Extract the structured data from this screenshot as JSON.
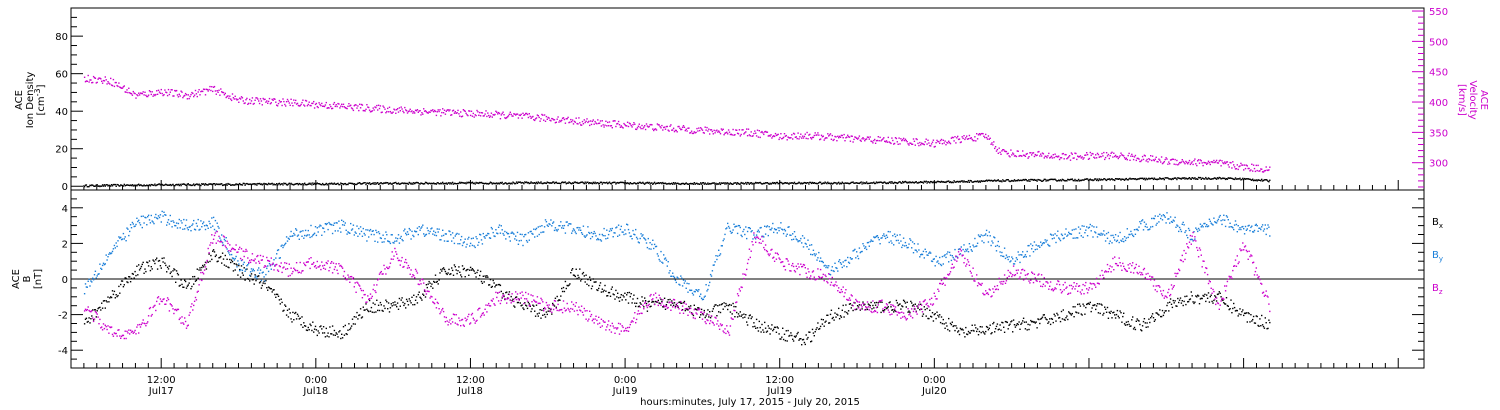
{
  "chart_data": [
    {
      "type": "scatter",
      "panel": "top",
      "left_axis": {
        "label_lines": [
          "ACE",
          "Ion Density"
        ],
        "unit_base": "[cm",
        "unit_sup": "-3",
        "unit_end": "]",
        "ticks": [
          0,
          20,
          40,
          60,
          80
        ],
        "ylim": [
          -2,
          95
        ]
      },
      "right_axis": {
        "label_lines": [
          "ACE",
          "Velocity",
          "[km/s]"
        ],
        "ticks": [
          300,
          350,
          400,
          450,
          500,
          550
        ],
        "ylim": [
          255,
          555
        ],
        "color": "#cc00cc"
      },
      "series": [
        {
          "axis": "left",
          "color": "#000000",
          "points": [
            [
              -6,
              0.6
            ],
            [
              0,
              1.1
            ],
            [
              6,
              1.4
            ],
            [
              12,
              1.6
            ],
            [
              18,
              1.9
            ],
            [
              24,
              2.0
            ],
            [
              30,
              2.2
            ],
            [
              36,
              2.0
            ],
            [
              42,
              1.8
            ],
            [
              48,
              2.0
            ],
            [
              54,
              2.1
            ],
            [
              60,
              2.6
            ],
            [
              66,
              3.4
            ],
            [
              72,
              3.8
            ],
            [
              78,
              4.4
            ],
            [
              82,
              4.6
            ],
            [
              84,
              4.2
            ],
            [
              86,
              3.2
            ]
          ]
        },
        {
          "axis": "right",
          "color": "#cc00cc",
          "points": [
            [
              -6,
              440
            ],
            [
              -4,
              436
            ],
            [
              -2,
              412
            ],
            [
              0,
              418
            ],
            [
              2,
              412
            ],
            [
              4,
              422
            ],
            [
              6,
              404
            ],
            [
              10,
              400
            ],
            [
              14,
              394
            ],
            [
              18,
              388
            ],
            [
              22,
              384
            ],
            [
              26,
              380
            ],
            [
              30,
              374
            ],
            [
              34,
              366
            ],
            [
              38,
              360
            ],
            [
              42,
              354
            ],
            [
              46,
              350
            ],
            [
              48,
              344
            ],
            [
              50,
              346
            ],
            [
              54,
              340
            ],
            [
              58,
              336
            ],
            [
              60,
              333
            ],
            [
              62,
              340
            ],
            [
              64,
              345
            ],
            [
              65,
              320
            ],
            [
              66,
              316
            ],
            [
              70,
              311
            ],
            [
              74,
              313
            ],
            [
              78,
              304
            ],
            [
              82,
              300
            ],
            [
              84,
              294
            ],
            [
              86,
              290
            ]
          ]
        }
      ]
    },
    {
      "type": "scatter",
      "panel": "bottom",
      "y_axis": {
        "label_lines": [
          "ACE",
          "B"
        ],
        "unit": "[nT]",
        "ticks": [
          -4,
          -2,
          0,
          2,
          4
        ],
        "ylim": [
          -5,
          5
        ]
      },
      "legend": [
        {
          "base": "B",
          "sub": "x",
          "color": "#000000"
        },
        {
          "base": "B",
          "sub": "y",
          "color": "#1a7fd9"
        },
        {
          "base": "B",
          "sub": "z",
          "color": "#cc00cc"
        }
      ],
      "series": [
        {
          "name": "Bx",
          "color": "#000000",
          "points": [
            [
              -6,
              -2.5
            ],
            [
              -4,
              -1.0
            ],
            [
              -2,
              0.5
            ],
            [
              0,
              1.0
            ],
            [
              2,
              -0.5
            ],
            [
              4,
              1.5
            ],
            [
              6,
              0.5
            ],
            [
              8,
              -0.3
            ],
            [
              10,
              -2.0
            ],
            [
              12,
              -2.8
            ],
            [
              14,
              -3.0
            ],
            [
              16,
              -1.5
            ],
            [
              18,
              -1.5
            ],
            [
              20,
              -1.0
            ],
            [
              22,
              0.5
            ],
            [
              24,
              0.5
            ],
            [
              26,
              -0.5
            ],
            [
              28,
              -1.5
            ],
            [
              30,
              -2.0
            ],
            [
              32,
              0.5
            ],
            [
              34,
              -0.5
            ],
            [
              36,
              -1.0
            ],
            [
              38,
              -1.5
            ],
            [
              40,
              -1.2
            ],
            [
              42,
              -2.0
            ],
            [
              44,
              -1.5
            ],
            [
              46,
              -2.5
            ],
            [
              48,
              -3.0
            ],
            [
              50,
              -3.4
            ],
            [
              52,
              -2.0
            ],
            [
              54,
              -1.5
            ],
            [
              56,
              -1.5
            ],
            [
              58,
              -1.5
            ],
            [
              60,
              -2.0
            ],
            [
              62,
              -3.0
            ],
            [
              64,
              -2.8
            ],
            [
              66,
              -2.6
            ],
            [
              68,
              -2.4
            ],
            [
              70,
              -2.0
            ],
            [
              72,
              -1.5
            ],
            [
              74,
              -2.0
            ],
            [
              76,
              -2.6
            ],
            [
              78,
              -1.5
            ],
            [
              80,
              -1.0
            ],
            [
              82,
              -1.0
            ],
            [
              84,
              -2.0
            ],
            [
              86,
              -2.5
            ]
          ]
        },
        {
          "name": "By",
          "color": "#1a7fd9",
          "points": [
            [
              -6,
              -0.5
            ],
            [
              -4,
              1.5
            ],
            [
              -2,
              3.2
            ],
            [
              0,
              3.5
            ],
            [
              2,
              3.0
            ],
            [
              4,
              3.2
            ],
            [
              6,
              0.8
            ],
            [
              8,
              0.2
            ],
            [
              10,
              2.5
            ],
            [
              12,
              2.8
            ],
            [
              14,
              3.0
            ],
            [
              16,
              2.5
            ],
            [
              18,
              2.3
            ],
            [
              20,
              2.8
            ],
            [
              22,
              2.5
            ],
            [
              24,
              2.0
            ],
            [
              26,
              2.8
            ],
            [
              28,
              2.2
            ],
            [
              30,
              3.2
            ],
            [
              32,
              2.8
            ],
            [
              34,
              2.5
            ],
            [
              36,
              2.8
            ],
            [
              38,
              2.0
            ],
            [
              40,
              0.0
            ],
            [
              42,
              -1.0
            ],
            [
              44,
              3.0
            ],
            [
              46,
              2.5
            ],
            [
              48,
              3.0
            ],
            [
              50,
              2.0
            ],
            [
              52,
              0.5
            ],
            [
              54,
              1.5
            ],
            [
              56,
              2.5
            ],
            [
              58,
              2.0
            ],
            [
              60,
              1.0
            ],
            [
              62,
              1.5
            ],
            [
              64,
              2.5
            ],
            [
              66,
              1.0
            ],
            [
              68,
              2.0
            ],
            [
              70,
              2.5
            ],
            [
              72,
              2.8
            ],
            [
              74,
              2.2
            ],
            [
              76,
              3.0
            ],
            [
              78,
              3.5
            ],
            [
              80,
              2.5
            ],
            [
              82,
              3.5
            ],
            [
              84,
              2.8
            ],
            [
              86,
              2.8
            ]
          ]
        },
        {
          "name": "Bz",
          "color": "#cc00cc",
          "points": [
            [
              -6,
              -1.5
            ],
            [
              -4,
              -3.0
            ],
            [
              -2,
              -3.0
            ],
            [
              0,
              -1.0
            ],
            [
              2,
              -2.5
            ],
            [
              4,
              2.5
            ],
            [
              6,
              1.5
            ],
            [
              8,
              1.0
            ],
            [
              10,
              0.5
            ],
            [
              12,
              1.0
            ],
            [
              14,
              0.5
            ],
            [
              16,
              -1.2
            ],
            [
              18,
              1.5
            ],
            [
              20,
              0.0
            ],
            [
              22,
              -2.2
            ],
            [
              24,
              -2.3
            ],
            [
              26,
              -1.0
            ],
            [
              28,
              -1.0
            ],
            [
              30,
              -1.5
            ],
            [
              32,
              -1.5
            ],
            [
              34,
              -2.5
            ],
            [
              36,
              -2.8
            ],
            [
              38,
              -1.0
            ],
            [
              40,
              -1.5
            ],
            [
              42,
              -2.0
            ],
            [
              44,
              -3.0
            ],
            [
              46,
              2.5
            ],
            [
              48,
              1.0
            ],
            [
              50,
              0.5
            ],
            [
              52,
              0.0
            ],
            [
              54,
              -1.5
            ],
            [
              56,
              -1.5
            ],
            [
              58,
              -2.0
            ],
            [
              60,
              -1.0
            ],
            [
              62,
              1.5
            ],
            [
              64,
              -1.0
            ],
            [
              66,
              0.5
            ],
            [
              68,
              0.0
            ],
            [
              70,
              -0.5
            ],
            [
              72,
              -0.5
            ],
            [
              74,
              1.0
            ],
            [
              76,
              0.5
            ],
            [
              78,
              -1.0
            ],
            [
              80,
              2.5
            ],
            [
              82,
              -1.5
            ],
            [
              84,
              2.0
            ],
            [
              86,
              -1.5
            ]
          ]
        }
      ]
    }
  ],
  "x_axis": {
    "xlim": [
      -7,
      98
    ],
    "major_ticks": [
      {
        "x": 0,
        "time": "12:00",
        "date": "Jul17"
      },
      {
        "x": 12,
        "time": "0:00",
        "date": "Jul18"
      },
      {
        "x": 24,
        "time": "12:00",
        "date": "Jul18"
      },
      {
        "x": 36,
        "time": "0:00",
        "date": "Jul19"
      },
      {
        "x": 48,
        "time": "12:00",
        "date": "Jul19"
      },
      {
        "x": 60,
        "time": "0:00",
        "date": "Jul20"
      }
    ],
    "title": "hours:minutes, July 17, 2015 - July 20, 2015"
  }
}
